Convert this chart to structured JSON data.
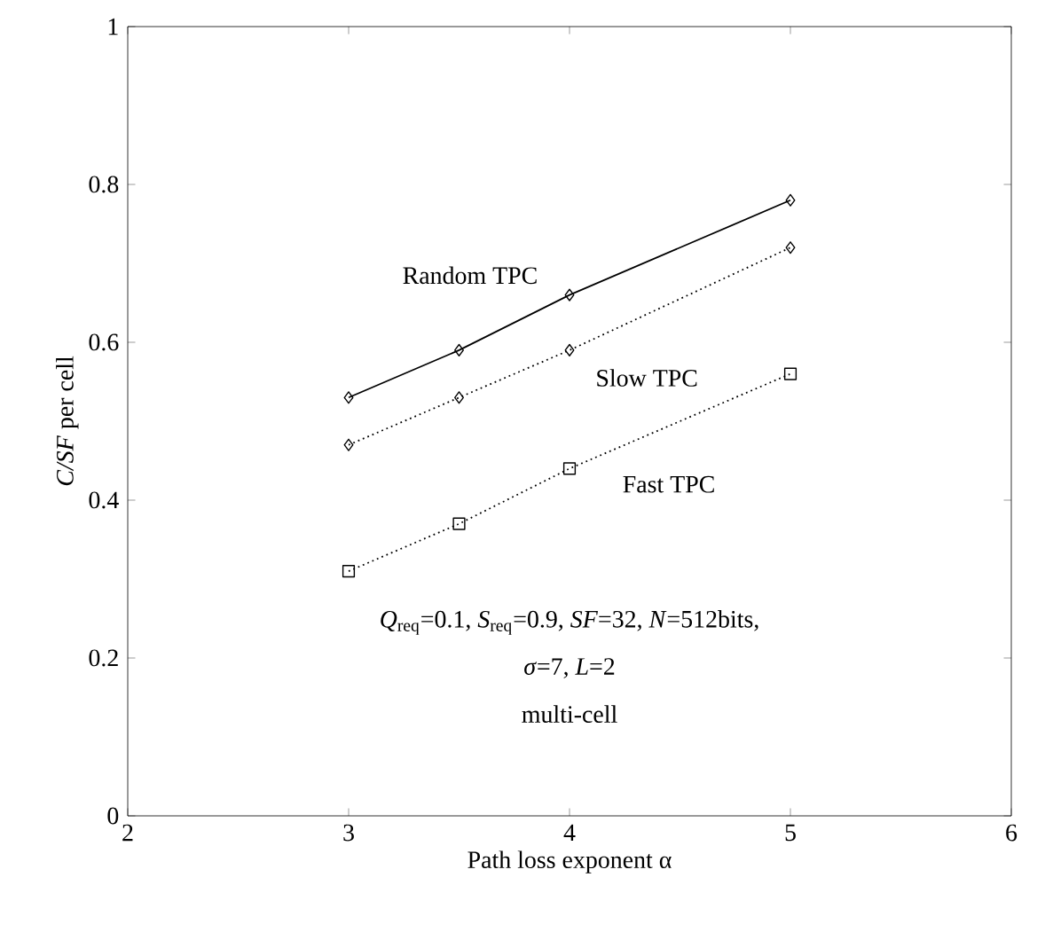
{
  "chart_data": {
    "type": "line",
    "xlabel": "Path loss exponent α",
    "ylabel": "*C/SF*  per cell",
    "x": [
      3,
      3.5,
      4,
      5
    ],
    "series": [
      {
        "name": "Random TPC",
        "color": "#000000",
        "values": [
          0.53,
          0.59,
          0.66,
          0.78
        ],
        "marker": "diamond",
        "line_style": "solid"
      },
      {
        "name": "Slow TPC",
        "color": "#000000",
        "values": [
          0.47,
          0.53,
          0.59,
          0.72
        ],
        "marker": "diamond",
        "line_style": "dotted"
      },
      {
        "name": "Fast TPC",
        "color": "#000000",
        "values": [
          0.31,
          0.37,
          0.44,
          0.56
        ],
        "marker": "square",
        "line_style": "dotted"
      }
    ],
    "xlim": [
      2,
      6
    ],
    "xticks": [
      2,
      3,
      4,
      5,
      6
    ],
    "ylim": [
      0,
      1
    ],
    "yticks": [
      0,
      0.2,
      0.4,
      0.6,
      0.8,
      1
    ],
    "grid": false,
    "legend": false,
    "annotations": [
      "*Q*$_{req}$=0.1, *S*$_{req}$=0.9, *SF*=32, *N*=512bits,",
      "*σ*=7, *L*=2",
      "multi-cell"
    ]
  }
}
